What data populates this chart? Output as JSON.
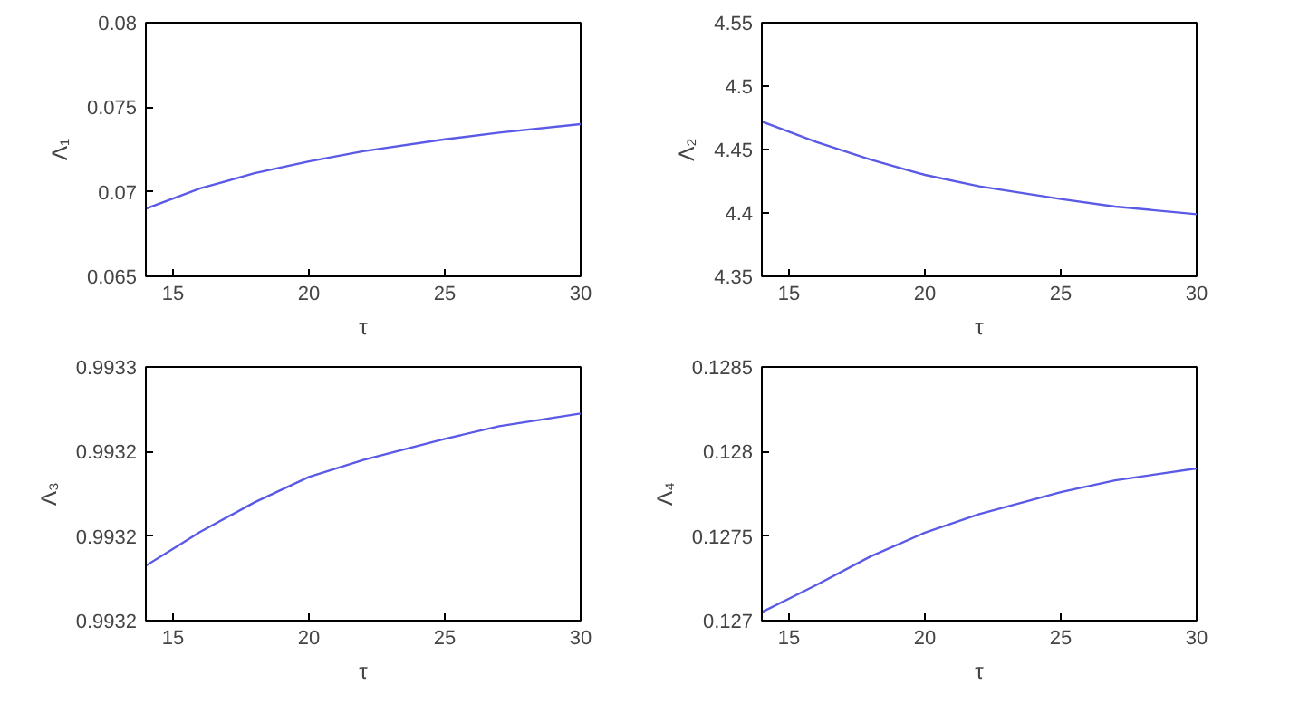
{
  "chart_data": [
    {
      "type": "line",
      "xlabel": "τ",
      "ylabel": "Λ₁",
      "xlim": [
        14,
        30
      ],
      "xticks": [
        15,
        20,
        25,
        30
      ],
      "ylim": [
        0.065,
        0.08
      ],
      "yticks": [
        0.065,
        0.07,
        0.075,
        0.08
      ],
      "grid": false,
      "x": [
        14,
        15,
        16,
        18,
        20,
        22,
        25,
        27,
        30
      ],
      "series": [
        {
          "color": "#5a5ae6",
          "values": [
            0.069,
            0.0696,
            0.0702,
            0.0711,
            0.0718,
            0.0724,
            0.0731,
            0.0735,
            0.074
          ]
        }
      ]
    },
    {
      "type": "line",
      "xlabel": "τ",
      "ylabel": "Λ₂",
      "xlim": [
        14,
        30
      ],
      "xticks": [
        15,
        20,
        25,
        30
      ],
      "ylim": [
        4.35,
        4.55
      ],
      "yticks": [
        4.35,
        4.4,
        4.45,
        4.5,
        4.55
      ],
      "grid": false,
      "x": [
        14,
        15,
        16,
        18,
        20,
        22,
        25,
        27,
        30
      ],
      "series": [
        {
          "color": "#5a5ae6",
          "values": [
            4.472,
            4.464,
            4.456,
            4.442,
            4.43,
            4.421,
            4.411,
            4.405,
            4.399
          ]
        }
      ]
    },
    {
      "type": "line",
      "xlabel": "τ",
      "ylabel": "Λ₃",
      "xlim": [
        14,
        30
      ],
      "xticks": [
        15,
        20,
        25,
        30
      ],
      "ylim": [
        0.9932,
        0.99326
      ],
      "yticks": [
        {
          "value": 0.9932,
          "label": "0.9932"
        },
        {
          "value": 0.99322,
          "label": "0.9932"
        },
        {
          "value": 0.99324,
          "label": "0.9932"
        },
        {
          "value": 0.99326,
          "label": "0.9933"
        }
      ],
      "grid": false,
      "x": [
        14,
        15,
        16,
        18,
        20,
        22,
        25,
        27,
        30
      ],
      "series": [
        {
          "color": "#5a5ae6",
          "values": [
            0.993213,
            0.993217,
            0.993221,
            0.993228,
            0.993234,
            0.993238,
            0.993243,
            0.993246,
            0.993249
          ]
        }
      ]
    },
    {
      "type": "line",
      "xlabel": "τ",
      "ylabel": "Λ₄",
      "xlim": [
        14,
        30
      ],
      "xticks": [
        15,
        20,
        25,
        30
      ],
      "ylim": [
        0.127,
        0.1285
      ],
      "yticks": [
        0.127,
        0.1275,
        0.128,
        0.1285
      ],
      "grid": false,
      "x": [
        14,
        15,
        16,
        18,
        20,
        22,
        25,
        27,
        30
      ],
      "series": [
        {
          "color": "#5a5ae6",
          "values": [
            0.12705,
            0.12713,
            0.12721,
            0.12738,
            0.12752,
            0.12763,
            0.12776,
            0.12783,
            0.1279
          ]
        }
      ]
    }
  ]
}
